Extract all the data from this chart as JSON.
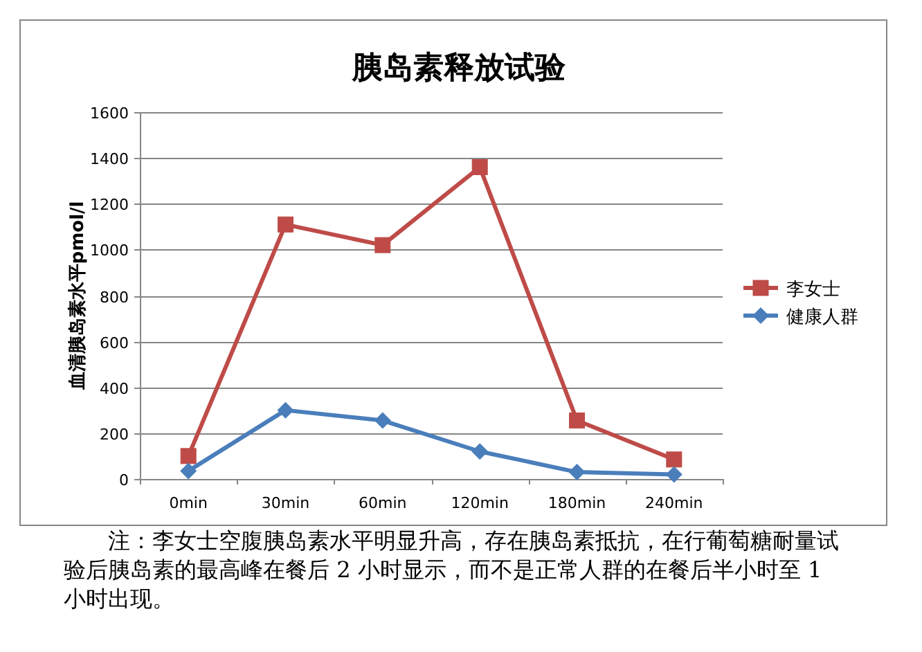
{
  "chart_data": {
    "type": "line",
    "title": "胰岛素释放试验",
    "ylabel": "血清胰岛素水平pmol/l",
    "categories": [
      "0min",
      "30min",
      "60min",
      "120min",
      "180min",
      "240min"
    ],
    "series": [
      {
        "name": "李女士",
        "color": "#be4b48",
        "marker": "square",
        "values": [
          100,
          1110,
          1020,
          1360,
          255,
          85
        ]
      },
      {
        "name": "健康人群",
        "color": "#4a7ebb",
        "marker": "diamond",
        "values": [
          35,
          300,
          255,
          120,
          30,
          20
        ]
      }
    ],
    "ylim": [
      0,
      1600
    ],
    "yticks": [
      0,
      200,
      400,
      600,
      800,
      1000,
      1200,
      1400,
      1600
    ],
    "grid": "y",
    "legend": "right",
    "line_style": "solid",
    "annotations": [
      "注：李女士空腹胰岛素水平明显升高，存在胰岛素抵抗，在行葡萄糖耐量试验后胰岛素的最高峰在餐后 2 小时显示，而不是正常人群的在餐后半小时至 1 小时出现。"
    ]
  }
}
